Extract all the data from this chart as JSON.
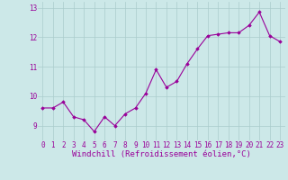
{
  "x": [
    0,
    1,
    2,
    3,
    4,
    5,
    6,
    7,
    8,
    9,
    10,
    11,
    12,
    13,
    14,
    15,
    16,
    17,
    18,
    19,
    20,
    21,
    22,
    23
  ],
  "y": [
    9.6,
    9.6,
    9.8,
    9.3,
    9.2,
    8.8,
    9.3,
    9.0,
    9.4,
    9.6,
    10.1,
    10.9,
    10.3,
    10.5,
    11.1,
    11.6,
    12.05,
    12.1,
    12.15,
    12.15,
    12.4,
    12.85,
    12.05,
    11.85
  ],
  "line_color": "#990099",
  "marker": "D",
  "marker_size": 1.8,
  "bg_color": "#cce8e8",
  "grid_color": "#aacccc",
  "xlabel": "Windchill (Refroidissement éolien,°C)",
  "xlabel_fontsize": 6.5,
  "xlabel_color": "#990099",
  "tick_color": "#990099",
  "tick_fontsize": 5.5,
  "xlim": [
    -0.5,
    23.5
  ],
  "ylim": [
    8.5,
    13.2
  ],
  "yticks": [
    9,
    10,
    11,
    12,
    13
  ],
  "xticks": [
    0,
    1,
    2,
    3,
    4,
    5,
    6,
    7,
    8,
    9,
    10,
    11,
    12,
    13,
    14,
    15,
    16,
    17,
    18,
    19,
    20,
    21,
    22,
    23
  ],
  "linewidth": 0.8
}
